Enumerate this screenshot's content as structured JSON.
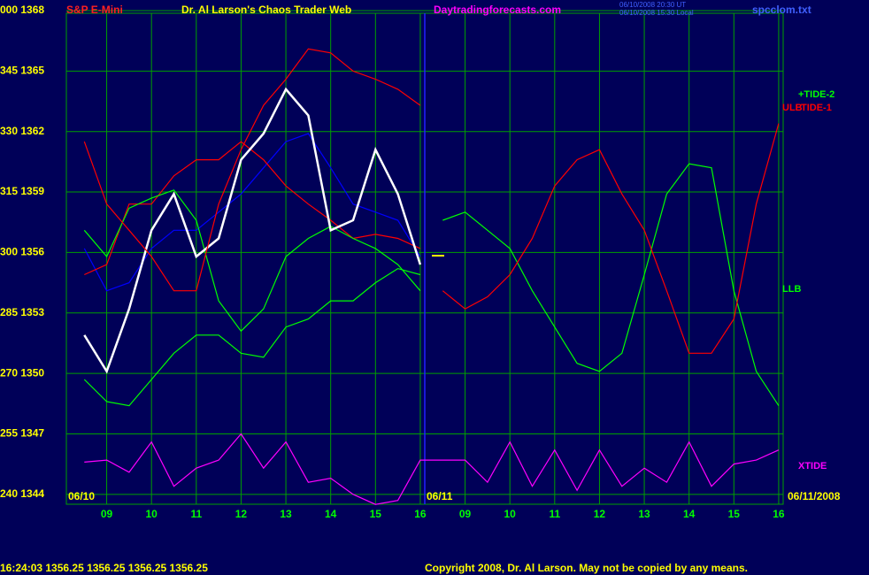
{
  "chart_data": {
    "type": "line",
    "title": "Dr. Al Larson's Chaos Trader Web",
    "symbol": "S&P E-Mini",
    "site": "Daytradingforecasts.com",
    "timestamp_ut": "06/10/2008 20:30 UT",
    "timestamp_local": "06/10/2008 15:30 Local",
    "file": "spcclom.txt",
    "date_start": "06/10",
    "date_mid": "06/11",
    "date_end": "06/11/2008",
    "quote": "16:24:03  1356.25  1356.25  1356.25  1356.25",
    "copyright": "Copyright 2008, Dr. Al Larson. May not be copied by any means.",
    "grid": true,
    "xlim": [
      0.1,
      16.1
    ],
    "ylim": [
      1342.5,
      1368
    ],
    "xticks": [
      {
        "value": 1,
        "label": "09"
      },
      {
        "value": 2,
        "label": "10"
      },
      {
        "value": 3,
        "label": "11"
      },
      {
        "value": 4,
        "label": "12"
      },
      {
        "value": 5,
        "label": "13"
      },
      {
        "value": 6,
        "label": "14"
      },
      {
        "value": 7,
        "label": "15"
      },
      {
        "value": 8,
        "label": "16"
      },
      {
        "value": 9,
        "label": "09"
      },
      {
        "value": 10,
        "label": "10"
      },
      {
        "value": 11,
        "label": "11"
      },
      {
        "value": 12,
        "label": "12"
      },
      {
        "value": 13,
        "label": "13"
      },
      {
        "value": 14,
        "label": "14"
      },
      {
        "value": 15,
        "label": "15"
      },
      {
        "value": 16,
        "label": "16"
      }
    ],
    "yticks": [
      {
        "value": 1368,
        "label": "000 1368"
      },
      {
        "value": 1365,
        "label": "345 1365"
      },
      {
        "value": 1362,
        "label": "330 1362"
      },
      {
        "value": 1359,
        "label": "315 1359"
      },
      {
        "value": 1356,
        "label": "300 1356"
      },
      {
        "value": 1353,
        "label": "285 1353"
      },
      {
        "value": 1350,
        "label": "270 1350"
      },
      {
        "value": 1347,
        "label": "255 1347"
      },
      {
        "value": 1344,
        "label": "240 1344"
      }
    ],
    "x": [
      0.5,
      1,
      1.5,
      2,
      2.5,
      3,
      3.5,
      4,
      4.5,
      5,
      5.5,
      6,
      6.5,
      7,
      7.5,
      8,
      8.5,
      9,
      9.5,
      10,
      10.5,
      11,
      11.5,
      12,
      12.5,
      13,
      13.5,
      14,
      14.5,
      15,
      15.5,
      16
    ],
    "series": [
      {
        "color": "#0000ff",
        "values": [
          1356.2,
          1354.1,
          1354.5,
          1356.2,
          1357.1,
          1357.1,
          1358.0,
          1358.9,
          1360.2,
          1361.5,
          1361.9,
          1360.2,
          1358.4,
          1358.0,
          1357.6,
          1355.8,
          null,
          null,
          null,
          null,
          null,
          null,
          null,
          null,
          null,
          null,
          null,
          null,
          null,
          null,
          null,
          null
        ]
      },
      {
        "color": "#ff0000",
        "values": [
          1354.9,
          1355.4,
          1358.4,
          1358.4,
          1359.8,
          1360.6,
          1360.6,
          1361.5,
          1360.6,
          1359.3,
          1358.4,
          1357.6,
          1356.7,
          1356.9,
          1356.7,
          1356.2,
          null,
          null,
          null,
          null,
          null,
          null,
          null,
          null,
          null,
          null,
          null,
          null,
          null,
          null,
          null,
          null
        ]
      },
      {
        "color": "#00ff00",
        "values": [
          1357.1,
          1355.8,
          1358.2,
          1358.7,
          1359.1,
          1357.6,
          1353.6,
          1352.1,
          1353.2,
          1355.8,
          1356.7,
          1357.3,
          1356.7,
          1356.2,
          1355.4,
          1354.1,
          null,
          null,
          null,
          null,
          null,
          null,
          null,
          null,
          null,
          null,
          null,
          null,
          null,
          null,
          null,
          null
        ]
      },
      {
        "color": "#ffffff",
        "values": [
          1351.9,
          1350.1,
          1353.2,
          1357.1,
          1358.9,
          1355.8,
          1356.7,
          1360.6,
          1361.9,
          1364.1,
          1362.8,
          1357.1,
          1357.6,
          1361.1,
          1358.9,
          1355.4,
          null,
          null,
          null,
          null,
          null,
          null,
          null,
          null,
          null,
          null,
          null,
          null,
          null,
          null,
          null,
          null
        ]
      },
      {
        "name": "+TIDE-2",
        "color": "#00ff00",
        "values": [
          null,
          null,
          null,
          null,
          null,
          null,
          null,
          null,
          null,
          null,
          null,
          null,
          null,
          null,
          null,
          null,
          1357.6,
          1358.0,
          1357.1,
          1356.2,
          1354.1,
          1352.3,
          1350.5,
          1350.1,
          1351.0,
          1354.9,
          1358.9,
          1360.4,
          1360.2,
          1354.1,
          1350.1,
          1348.4
        ]
      },
      {
        "name": "ULB",
        "color": "#ff0000",
        "values": [
          1361.5,
          1358.4,
          1357.1,
          1355.8,
          1354.1,
          1354.1,
          1358.4,
          1361.1,
          1363.3,
          1364.6,
          1366.1,
          1365.9,
          1365.0,
          1364.6,
          1364.1,
          1363.3,
          null,
          null,
          null,
          null,
          null,
          null,
          null,
          null,
          null,
          null,
          null,
          null,
          null,
          null,
          null,
          null
        ]
      },
      {
        "name": "TIDE-1",
        "color": "#ff0000",
        "values": [
          null,
          null,
          null,
          null,
          null,
          null,
          null,
          null,
          null,
          null,
          null,
          null,
          null,
          null,
          null,
          null,
          1354.1,
          1353.2,
          1353.8,
          1354.9,
          1356.7,
          1359.3,
          1360.6,
          1361.1,
          1358.9,
          1357.1,
          1354.1,
          1351.0,
          1351.0,
          1352.7,
          1358.4,
          1362.4
        ]
      },
      {
        "name": "LLB",
        "color": "#00ff00",
        "values": [
          1349.7,
          1348.6,
          1348.4,
          1349.7,
          1351.0,
          1351.9,
          1351.9,
          1351.0,
          1350.8,
          1352.3,
          1352.7,
          1353.6,
          1353.6,
          1354.5,
          1355.2,
          1354.9,
          null,
          null,
          null,
          null,
          null,
          null,
          null,
          null,
          null,
          null,
          null,
          null,
          null,
          null,
          null,
          null
        ]
      },
      {
        "name": "XTIDE",
        "color": "#ff00ff",
        "values": [
          1345.6,
          1345.7,
          1345.1,
          1346.6,
          1344.4,
          1345.3,
          1345.7,
          1347.0,
          1345.3,
          1346.6,
          1344.6,
          1344.8,
          1344.0,
          1343.5,
          1343.7,
          1345.7,
          1345.7,
          1345.7,
          1344.6,
          1346.6,
          1344.4,
          1346.2,
          1344.2,
          1346.2,
          1344.4,
          1345.3,
          1344.6,
          1346.6,
          1344.4,
          1345.5,
          1345.7,
          1346.2
        ]
      }
    ]
  }
}
